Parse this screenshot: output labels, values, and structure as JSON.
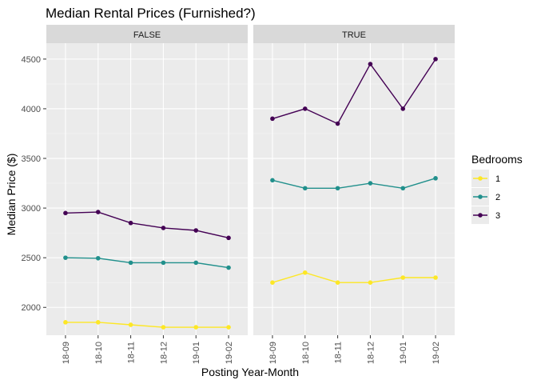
{
  "chart_data": {
    "type": "line",
    "title": "Median Rental Prices (Furnished?)",
    "xlabel": "Posting Year-Month",
    "ylabel": "Median Price ($)",
    "categories": [
      "18-09",
      "18-10",
      "18-11",
      "18-12",
      "19-01",
      "19-02"
    ],
    "yticks": [
      2000,
      2500,
      3000,
      3500,
      4000,
      4500
    ],
    "ylim": [
      1720,
      4660
    ],
    "grid": true,
    "legend": {
      "title": "Bedrooms",
      "position": "right",
      "entries": [
        "1",
        "2",
        "3"
      ]
    },
    "series_colors": {
      "1": "#fde725",
      "2": "#21908c",
      "3": "#440154"
    },
    "panels": [
      {
        "label": "FALSE",
        "series": [
          {
            "name": "1",
            "values": [
              1850,
              1850,
              1825,
              1800,
              1800,
              1800
            ]
          },
          {
            "name": "2",
            "values": [
              2500,
              2495,
              2450,
              2450,
              2450,
              2400
            ]
          },
          {
            "name": "3",
            "values": [
              2950,
              2960,
              2850,
              2800,
              2775,
              2700
            ]
          }
        ]
      },
      {
        "label": "TRUE",
        "series": [
          {
            "name": "1",
            "values": [
              2250,
              2350,
              2250,
              2250,
              2300,
              2300
            ]
          },
          {
            "name": "2",
            "values": [
              3280,
              3200,
              3200,
              3250,
              3200,
              3300
            ]
          },
          {
            "name": "3",
            "values": [
              3900,
              4000,
              3850,
              4450,
              4000,
              4500
            ]
          }
        ]
      }
    ]
  }
}
